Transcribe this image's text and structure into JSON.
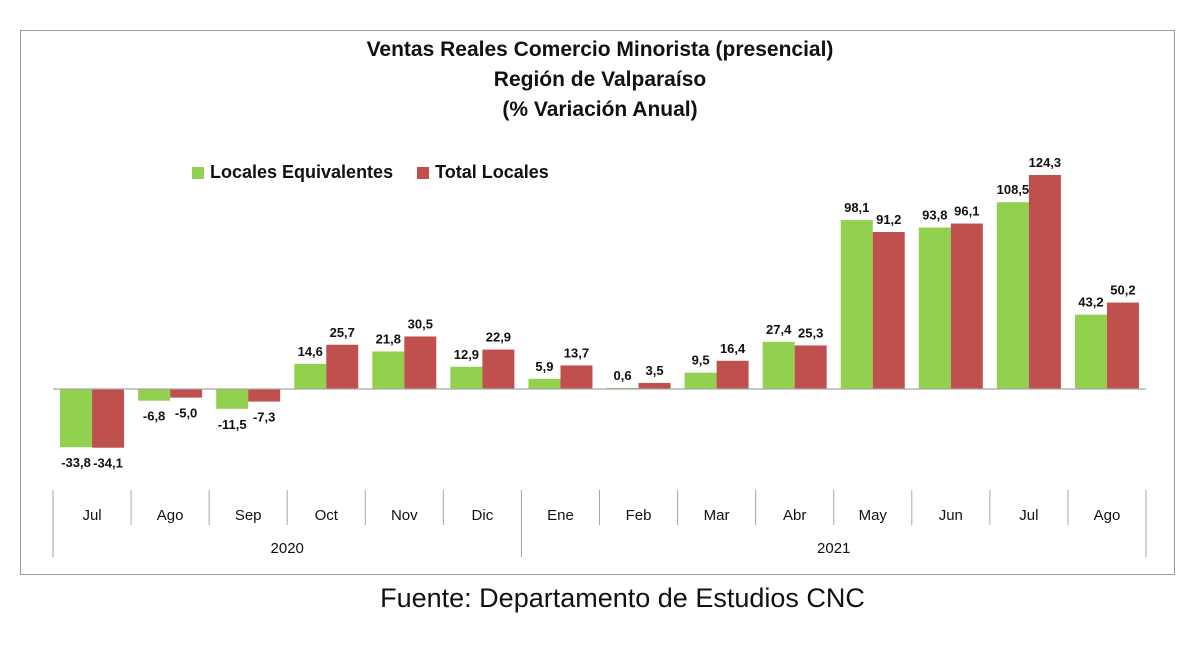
{
  "chart_data": {
    "type": "bar",
    "title": [
      "Ventas Reales Comercio Minorista (presencial)",
      "Región de Valparaíso",
      "(% Variación Anual)"
    ],
    "categories": [
      "Jul",
      "Ago",
      "Sep",
      "Oct",
      "Nov",
      "Dic",
      "Ene",
      "Feb",
      "Mar",
      "Abr",
      "May",
      "Jun",
      "Jul",
      "Ago"
    ],
    "year_groups": [
      {
        "label": "2020",
        "start": 0,
        "end": 5
      },
      {
        "label": "2021",
        "start": 6,
        "end": 13
      }
    ],
    "series": [
      {
        "name": "Locales Equivalentes",
        "color": "#92d050",
        "values": [
          -33.8,
          -6.8,
          -11.5,
          14.6,
          21.8,
          12.9,
          5.9,
          0.6,
          9.5,
          27.4,
          98.1,
          93.8,
          108.5,
          43.2
        ],
        "labels": [
          "-33,8",
          "-6,8",
          "-11,5",
          "14,6",
          "21,8",
          "12,9",
          "5,9",
          "0,6",
          "9,5",
          "27,4",
          "98,1",
          "93,8",
          "108,5",
          "43,2"
        ]
      },
      {
        "name": "Total Locales",
        "color": "#c0504d",
        "values": [
          -34.1,
          -5.0,
          -7.3,
          25.7,
          30.5,
          22.9,
          13.7,
          3.5,
          16.4,
          25.3,
          91.2,
          96.1,
          124.3,
          50.2
        ],
        "labels": [
          "-34,1",
          "-5,0",
          "-7,3",
          "25,7",
          "30,5",
          "22,9",
          "13,7",
          "3,5",
          "16,4",
          "25,3",
          "91,2",
          "96,1",
          "124,3",
          "50,2"
        ]
      }
    ],
    "legend_position": "top-left",
    "grid": false
  },
  "source": "Fuente: Departamento de Estudios CNC"
}
